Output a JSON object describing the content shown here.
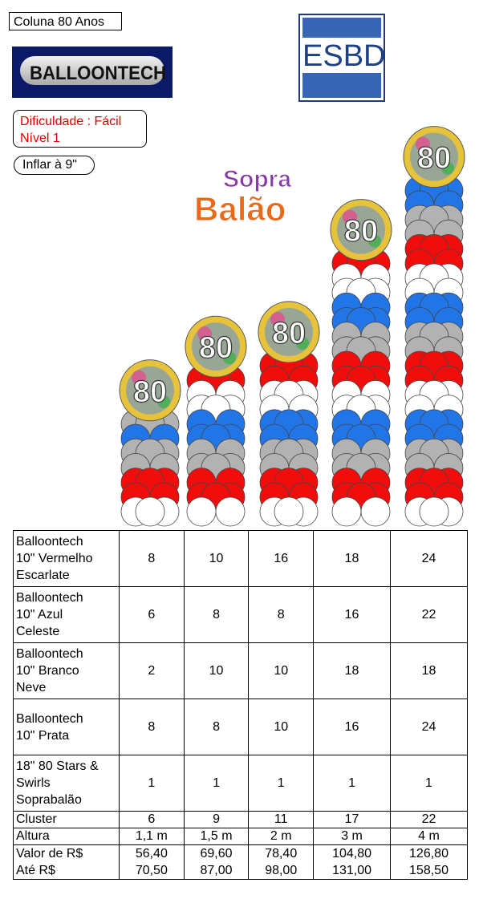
{
  "header": {
    "title": "Coluna 80 Anos",
    "difficulty_line1": "Dificuldade : Fácil",
    "difficulty_line2": "Nível 1",
    "inflate": "Inflar à 9\""
  },
  "logos": {
    "balloontech": "BALLOONTECH",
    "esbd": "ESBD",
    "soprabalao_line1": "Sopra",
    "soprabalao_line2": "Balão",
    "topper_number": "80"
  },
  "colors": {
    "red": "#f20d0d",
    "blue": "#2275e6",
    "white": "#ffffff",
    "silver": "#b2b2b2"
  },
  "columns": [
    {
      "rows": [
        "silver",
        "blue",
        "silver",
        "silver",
        "red",
        "red",
        "white"
      ]
    },
    {
      "rows": [
        "red",
        "white",
        "white",
        "blue",
        "blue",
        "silver",
        "silver",
        "red",
        "red",
        "white"
      ]
    },
    {
      "rows": [
        "red",
        "red",
        "white",
        "white",
        "blue",
        "blue",
        "silver",
        "silver",
        "red",
        "red",
        "white"
      ]
    },
    {
      "rows": [
        "red",
        "white",
        "white",
        "blue",
        "blue",
        "silver",
        "silver",
        "red",
        "red",
        "white",
        "white",
        "blue",
        "blue",
        "silver",
        "silver",
        "red",
        "red",
        "white"
      ]
    },
    {
      "rows": [
        "blue",
        "blue",
        "silver",
        "silver",
        "red",
        "red",
        "white",
        "white",
        "blue",
        "blue",
        "silver",
        "silver",
        "red",
        "red",
        "white",
        "white",
        "blue",
        "blue",
        "silver",
        "silver",
        "red",
        "red",
        "white"
      ]
    }
  ],
  "table": {
    "rows": [
      {
        "label": [
          "Balloontech",
          "10\" Vermelho",
          "Escarlate"
        ],
        "values": [
          "8",
          "10",
          "16",
          "18",
          "24"
        ]
      },
      {
        "label": [
          "Balloontech",
          "10\" Azul",
          "Celeste"
        ],
        "values": [
          "6",
          "8",
          "8",
          "16",
          "22"
        ]
      },
      {
        "label": [
          "Balloontech",
          "10\" Branco",
          "Neve"
        ],
        "values": [
          "2",
          "10",
          "10",
          "18",
          "18"
        ]
      },
      {
        "label": [
          "Balloontech",
          "10\" Prata"
        ],
        "values": [
          "8",
          "8",
          "10",
          "16",
          "24"
        ]
      },
      {
        "label": [
          "18\" 80 Stars &",
          "Swirls",
          "Soprabalão"
        ],
        "values": [
          "1",
          "1",
          "1",
          "1",
          "1"
        ]
      }
    ],
    "cluster": {
      "label": "Cluster",
      "values": [
        "6",
        "9",
        "11",
        "17",
        "22"
      ]
    },
    "altura": {
      "label": "Altura",
      "values": [
        "1,1 m",
        "1,5 m",
        "2 m",
        "3 m",
        "4 m"
      ]
    },
    "valor": {
      "label1": "Valor de  R$",
      "label2": "Até R$",
      "from": [
        "56,40",
        "69,60",
        "78,40",
        "104,80",
        "126,80"
      ],
      "to": [
        "70,50",
        "87,00",
        "98,00",
        "131,00",
        "158,50"
      ]
    }
  }
}
